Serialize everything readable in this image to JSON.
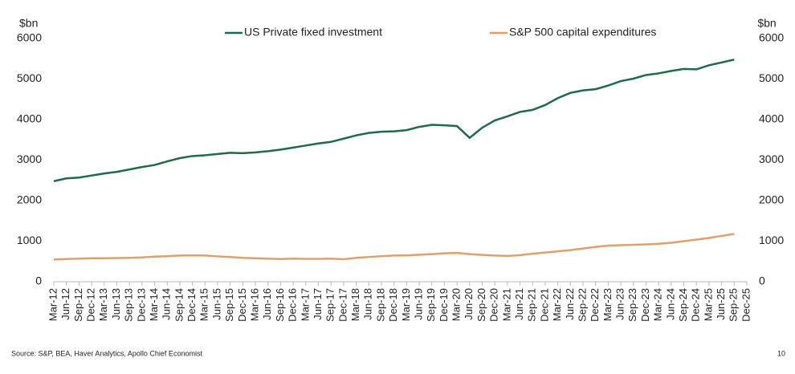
{
  "chart_data": {
    "type": "line",
    "y_label": "$bn",
    "y2_label": "$bn",
    "categories": [
      "Mar-12",
      "Jun-12",
      "Sep-12",
      "Dec-12",
      "Mar-13",
      "Jun-13",
      "Sep-13",
      "Dec-13",
      "Mar-14",
      "Jun-14",
      "Sep-14",
      "Dec-14",
      "Mar-15",
      "Jun-15",
      "Sep-15",
      "Dec-15",
      "Mar-16",
      "Jun-16",
      "Sep-16",
      "Dec-16",
      "Mar-17",
      "Jun-17",
      "Sep-17",
      "Dec-17",
      "Mar-18",
      "Jun-18",
      "Sep-18",
      "Dec-18",
      "Mar-19",
      "Jun-19",
      "Sep-19",
      "Dec-19",
      "Mar-20",
      "Jun-20",
      "Sep-20",
      "Dec-20",
      "Mar-21",
      "Jun-21",
      "Sep-21",
      "Dec-21",
      "Mar-22",
      "Jun-22",
      "Sep-22",
      "Dec-22",
      "Mar-23",
      "Jun-23",
      "Sep-23",
      "Dec-23",
      "Mar-24",
      "Jun-24",
      "Sep-24",
      "Dec-24",
      "Mar-25",
      "Jun-25",
      "Sep-25",
      "Dec-25"
    ],
    "series": [
      {
        "name": "US Private fixed investment",
        "color": "#1e6b4a",
        "values": [
          2480,
          2550,
          2570,
          2620,
          2670,
          2710,
          2770,
          2830,
          2880,
          2970,
          3050,
          3100,
          3120,
          3150,
          3180,
          3170,
          3190,
          3220,
          3260,
          3310,
          3360,
          3410,
          3450,
          3530,
          3610,
          3670,
          3700,
          3710,
          3740,
          3820,
          3870,
          3860,
          3840,
          3550,
          3800,
          3980,
          4080,
          4190,
          4240,
          4360,
          4530,
          4660,
          4720,
          4750,
          4840,
          4950,
          5010,
          5100,
          5140,
          5200,
          5250,
          5240,
          5340,
          5410,
          5480,
          null
        ]
      },
      {
        "name": "S&P 500 capital expenditures",
        "color": "#e0a06c",
        "values": [
          550,
          560,
          570,
          580,
          580,
          585,
          590,
          600,
          620,
          630,
          645,
          650,
          645,
          625,
          610,
          590,
          580,
          570,
          560,
          570,
          565,
          565,
          570,
          555,
          590,
          610,
          630,
          645,
          650,
          665,
          680,
          700,
          710,
          680,
          660,
          645,
          635,
          655,
          690,
          720,
          750,
          780,
          820,
          860,
          890,
          900,
          910,
          920,
          935,
          960,
          1000,
          1040,
          1080,
          1130,
          1180,
          null
        ]
      }
    ],
    "ylim": [
      0,
      6000
    ],
    "yticks": [
      0,
      1000,
      2000,
      3000,
      4000,
      5000,
      6000
    ],
    "y2lim": [
      0,
      6000
    ],
    "y2ticks": [
      0,
      1000,
      2000,
      3000,
      4000,
      5000,
      6000
    ],
    "source": "Source: S&P, BEA, Haver Analytics, Apollo Chief Economist",
    "page_number": "10"
  }
}
